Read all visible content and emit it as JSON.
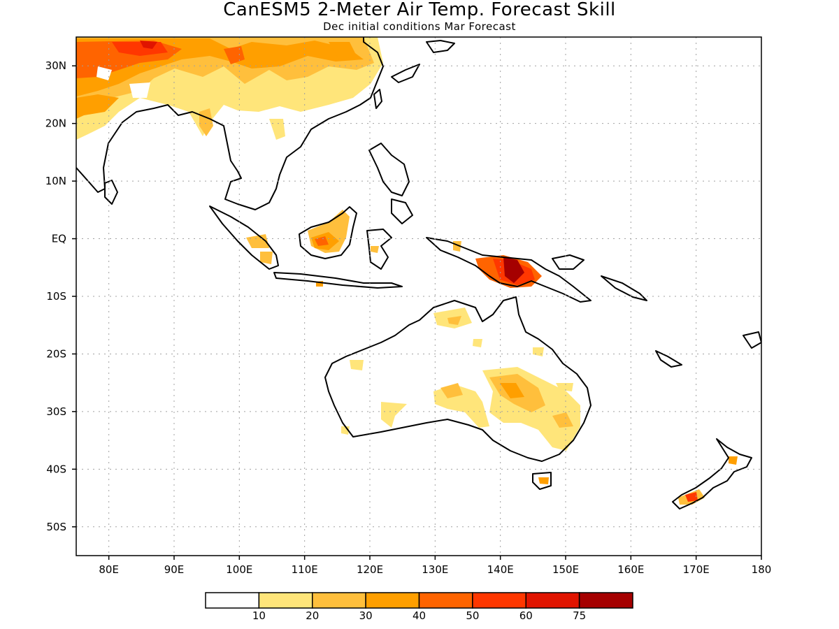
{
  "title": "CanESM5 2-Meter Air Temp. Forecast Skill",
  "subtitle": "Dec initial conditions  Mar Forecast",
  "map": {
    "lon_range": [
      75,
      180
    ],
    "lat_range": [
      -55,
      35
    ],
    "lon_ticks": [
      {
        "value": 80,
        "label": "80E"
      },
      {
        "value": 90,
        "label": "90E"
      },
      {
        "value": 100,
        "label": "100E"
      },
      {
        "value": 110,
        "label": "110E"
      },
      {
        "value": 120,
        "label": "120E"
      },
      {
        "value": 130,
        "label": "130E"
      },
      {
        "value": 140,
        "label": "140E"
      },
      {
        "value": 150,
        "label": "150E"
      },
      {
        "value": 160,
        "label": "160E"
      },
      {
        "value": 170,
        "label": "170E"
      },
      {
        "value": 180,
        "label": "180"
      }
    ],
    "lat_ticks": [
      {
        "value": 30,
        "label": "30N"
      },
      {
        "value": 20,
        "label": "20N"
      },
      {
        "value": 10,
        "label": "10N"
      },
      {
        "value": 0,
        "label": "EQ"
      },
      {
        "value": -10,
        "label": "10S"
      },
      {
        "value": -20,
        "label": "20S"
      },
      {
        "value": -30,
        "label": "30S"
      },
      {
        "value": -40,
        "label": "40S"
      },
      {
        "value": -50,
        "label": "50S"
      }
    ],
    "gridlines": "dotted"
  },
  "colorbar": {
    "colors": [
      "#ffffff",
      "#ffe57a",
      "#ffbf3c",
      "#ff9f00",
      "#ff6400",
      "#ff3700",
      "#e01400",
      "#a50000"
    ],
    "labels": [
      "10",
      "20",
      "30",
      "40",
      "50",
      "60",
      "75"
    ]
  }
}
